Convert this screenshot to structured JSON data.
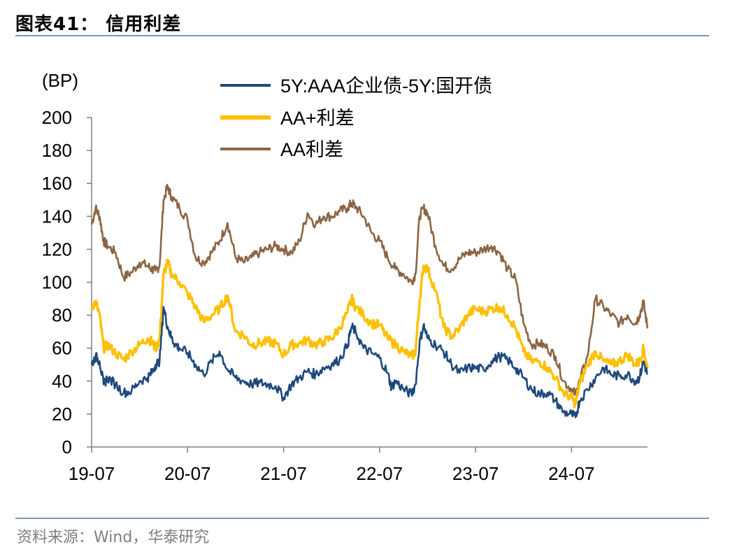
{
  "header": {
    "title": "图表41：  信用利差"
  },
  "footer": {
    "source": "资料来源：Wind，华泰研究"
  },
  "chart_data": {
    "type": "line",
    "title": "信用利差",
    "ylabel": "(BP)",
    "xlabel": "",
    "ylim": [
      0,
      200
    ],
    "yticks": [
      "0",
      "20",
      "40",
      "60",
      "80",
      "100",
      "120",
      "140",
      "160",
      "180",
      "200"
    ],
    "xrange": [
      0,
      69.5
    ],
    "xtick_labels": [
      "19-07",
      "20-07",
      "21-07",
      "22-07",
      "23-07",
      "24-07"
    ],
    "xtick_positions": [
      0,
      12,
      24,
      36,
      48,
      60
    ],
    "legend_position": "top",
    "series": [
      {
        "name": "5Y:AAA企业债-5Y:国开债",
        "color": "#1f497d",
        "points": [
          [
            0,
            50
          ],
          [
            0.5,
            55
          ],
          [
            1,
            52
          ],
          [
            1.5,
            38
          ],
          [
            2,
            42
          ],
          [
            3,
            38
          ],
          [
            4,
            33
          ],
          [
            5,
            34
          ],
          [
            6,
            40
          ],
          [
            7,
            42
          ],
          [
            7.5,
            45
          ],
          [
            8,
            50
          ],
          [
            8.5,
            52
          ],
          [
            9,
            85
          ],
          [
            9.5,
            73
          ],
          [
            10,
            66
          ],
          [
            10.5,
            62
          ],
          [
            11,
            60
          ],
          [
            12,
            57
          ],
          [
            13,
            50
          ],
          [
            14,
            44
          ],
          [
            15,
            52
          ],
          [
            16,
            58
          ],
          [
            17,
            47
          ],
          [
            18,
            42
          ],
          [
            19,
            40
          ],
          [
            20,
            38
          ],
          [
            21,
            39
          ],
          [
            22,
            38
          ],
          [
            23,
            37
          ],
          [
            24,
            30
          ],
          [
            25,
            38
          ],
          [
            26,
            42
          ],
          [
            27,
            46
          ],
          [
            28,
            44
          ],
          [
            29,
            48
          ],
          [
            30,
            50
          ],
          [
            31,
            53
          ],
          [
            32,
            62
          ],
          [
            32.5,
            73
          ],
          [
            33,
            70
          ],
          [
            34,
            60
          ],
          [
            35,
            57
          ],
          [
            36,
            54
          ],
          [
            37,
            45
          ],
          [
            37.5,
            36
          ],
          [
            38,
            40
          ],
          [
            39,
            35
          ],
          [
            40,
            32
          ],
          [
            40.5,
            38
          ],
          [
            41,
            63
          ],
          [
            41.5,
            74
          ],
          [
            42,
            66
          ],
          [
            43,
            62
          ],
          [
            44,
            58
          ],
          [
            45,
            50
          ],
          [
            46,
            45
          ],
          [
            47,
            48
          ],
          [
            48,
            48
          ],
          [
            49,
            47
          ],
          [
            50,
            52
          ],
          [
            51,
            55
          ],
          [
            52,
            53
          ],
          [
            53,
            48
          ],
          [
            54,
            42
          ],
          [
            55,
            35
          ],
          [
            56,
            32
          ],
          [
            57,
            33
          ],
          [
            58,
            28
          ],
          [
            59,
            21
          ],
          [
            60,
            20
          ],
          [
            60.5,
            18
          ],
          [
            61,
            28
          ],
          [
            62,
            35
          ],
          [
            63,
            42
          ],
          [
            64,
            48
          ],
          [
            65,
            44
          ],
          [
            66,
            43
          ],
          [
            67,
            44
          ],
          [
            68,
            40
          ],
          [
            68.5,
            42
          ],
          [
            69,
            52
          ],
          [
            69.5,
            44
          ]
        ]
      },
      {
        "name": "AA+利差",
        "color": "#ffc000",
        "points": [
          [
            0,
            85
          ],
          [
            0.5,
            88
          ],
          [
            1,
            80
          ],
          [
            1.5,
            60
          ],
          [
            2,
            62
          ],
          [
            3,
            57
          ],
          [
            4,
            53
          ],
          [
            5,
            58
          ],
          [
            6,
            62
          ],
          [
            7,
            66
          ],
          [
            7.5,
            64
          ],
          [
            8,
            60
          ],
          [
            8.5,
            65
          ],
          [
            9,
            105
          ],
          [
            9.5,
            112
          ],
          [
            10,
            105
          ],
          [
            11,
            100
          ],
          [
            12,
            93
          ],
          [
            13,
            85
          ],
          [
            14,
            76
          ],
          [
            15,
            80
          ],
          [
            16,
            84
          ],
          [
            17,
            92
          ],
          [
            18,
            70
          ],
          [
            19,
            68
          ],
          [
            20,
            62
          ],
          [
            21,
            63
          ],
          [
            22,
            64
          ],
          [
            23,
            63
          ],
          [
            24,
            56
          ],
          [
            25,
            62
          ],
          [
            26,
            63
          ],
          [
            27,
            65
          ],
          [
            28,
            62
          ],
          [
            29,
            64
          ],
          [
            30,
            66
          ],
          [
            31,
            72
          ],
          [
            32,
            82
          ],
          [
            32.5,
            90
          ],
          [
            33,
            85
          ],
          [
            34,
            80
          ],
          [
            35,
            75
          ],
          [
            36,
            74
          ],
          [
            37,
            66
          ],
          [
            38,
            62
          ],
          [
            39,
            58
          ],
          [
            40,
            55
          ],
          [
            40.5,
            58
          ],
          [
            41,
            88
          ],
          [
            41.5,
            110
          ],
          [
            42,
            108
          ],
          [
            43,
            95
          ],
          [
            44,
            73
          ],
          [
            45,
            67
          ],
          [
            46,
            72
          ],
          [
            47,
            80
          ],
          [
            48,
            84
          ],
          [
            49,
            82
          ],
          [
            50,
            84
          ],
          [
            51,
            85
          ],
          [
            52,
            80
          ],
          [
            53,
            72
          ],
          [
            54,
            58
          ],
          [
            55,
            52
          ],
          [
            56,
            52
          ],
          [
            57,
            48
          ],
          [
            58,
            42
          ],
          [
            59,
            33
          ],
          [
            60,
            30
          ],
          [
            60.5,
            26
          ],
          [
            61,
            38
          ],
          [
            62,
            50
          ],
          [
            63,
            58
          ],
          [
            64,
            52
          ],
          [
            65,
            50
          ],
          [
            66,
            52
          ],
          [
            67,
            56
          ],
          [
            68,
            50
          ],
          [
            68.5,
            52
          ],
          [
            69,
            60
          ],
          [
            69.5,
            48
          ]
        ]
      },
      {
        "name": "AA利差",
        "color": "#8b6543",
        "points": [
          [
            0,
            135
          ],
          [
            0.5,
            145
          ],
          [
            1,
            140
          ],
          [
            1.5,
            125
          ],
          [
            2,
            122
          ],
          [
            3,
            118
          ],
          [
            4,
            103
          ],
          [
            5,
            106
          ],
          [
            6,
            112
          ],
          [
            7,
            110
          ],
          [
            7.5,
            108
          ],
          [
            8,
            107
          ],
          [
            8.5,
            110
          ],
          [
            9,
            150
          ],
          [
            9.5,
            158
          ],
          [
            10,
            152
          ],
          [
            11,
            145
          ],
          [
            12,
            138
          ],
          [
            13,
            115
          ],
          [
            14,
            112
          ],
          [
            15,
            118
          ],
          [
            16,
            125
          ],
          [
            17,
            136
          ],
          [
            18,
            115
          ],
          [
            19,
            112
          ],
          [
            20,
            115
          ],
          [
            21,
            118
          ],
          [
            22,
            120
          ],
          [
            23,
            122
          ],
          [
            24,
            120
          ],
          [
            25,
            118
          ],
          [
            26,
            125
          ],
          [
            27,
            142
          ],
          [
            28,
            135
          ],
          [
            29,
            140
          ],
          [
            30,
            140
          ],
          [
            31,
            143
          ],
          [
            32,
            145
          ],
          [
            32.5,
            148
          ],
          [
            33,
            146
          ],
          [
            34,
            140
          ],
          [
            35,
            130
          ],
          [
            36,
            125
          ],
          [
            37,
            115
          ],
          [
            38,
            108
          ],
          [
            39,
            105
          ],
          [
            40,
            100
          ],
          [
            40.5,
            105
          ],
          [
            41,
            140
          ],
          [
            41.5,
            145
          ],
          [
            42,
            142
          ],
          [
            43,
            122
          ],
          [
            44,
            110
          ],
          [
            45,
            108
          ],
          [
            46,
            114
          ],
          [
            47,
            118
          ],
          [
            48,
            118
          ],
          [
            49,
            120
          ],
          [
            50,
            122
          ],
          [
            51,
            118
          ],
          [
            52,
            108
          ],
          [
            53,
            102
          ],
          [
            54,
            75
          ],
          [
            55,
            62
          ],
          [
            56,
            63
          ],
          [
            57,
            60
          ],
          [
            58,
            55
          ],
          [
            59,
            40
          ],
          [
            60,
            35
          ],
          [
            60.5,
            32
          ],
          [
            61,
            40
          ],
          [
            62,
            55
          ],
          [
            63,
            90
          ],
          [
            64,
            85
          ],
          [
            65,
            80
          ],
          [
            66,
            75
          ],
          [
            67,
            80
          ],
          [
            68,
            75
          ],
          [
            68.5,
            80
          ],
          [
            69,
            88
          ],
          [
            69.5,
            72
          ]
        ]
      }
    ]
  }
}
